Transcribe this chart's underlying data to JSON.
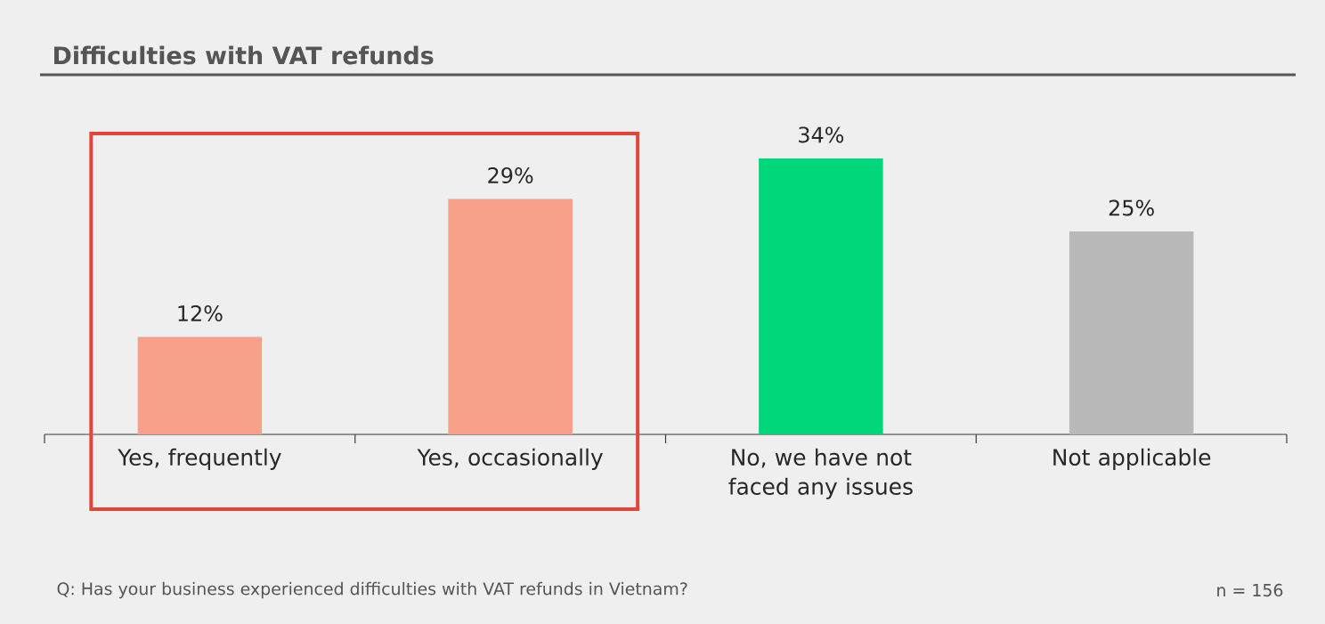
{
  "chart_data": {
    "type": "bar",
    "title": "Difficulties with VAT refunds",
    "categories": [
      "Yes, frequently",
      "Yes, occasionally",
      "No, we have not faced any issues",
      "Not applicable"
    ],
    "values": [
      12,
      29,
      34,
      25
    ],
    "colors": [
      "#f9a08a",
      "#f9a08a",
      "#00d67a",
      "#b9b9ba"
    ],
    "value_labels": [
      "12%",
      "29%",
      "34%",
      "25%"
    ],
    "annotations": [
      "Q: Has your business experienced difficulties with VAT refunds in Vietnam?",
      "n = 156"
    ],
    "tick_labels": "x"
  }
}
